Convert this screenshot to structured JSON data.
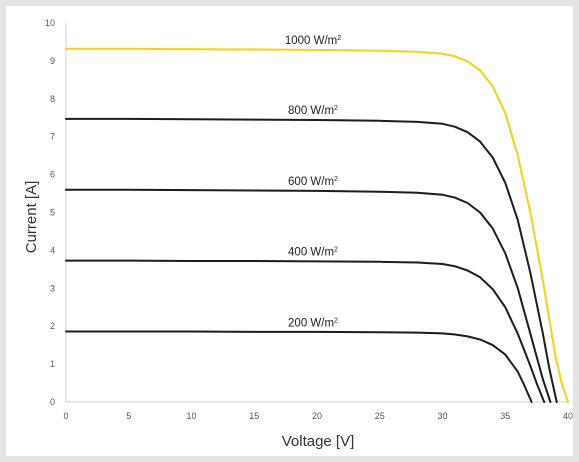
{
  "chart_data": {
    "type": "line",
    "xlabel": "Voltage [V]",
    "ylabel": "Current [A]",
    "xlim": [
      0,
      40
    ],
    "ylim": [
      0,
      10
    ],
    "x_ticks": [
      "0",
      "5",
      "10",
      "15",
      "20",
      "25",
      "30",
      "35",
      "40"
    ],
    "y_ticks": [
      "0",
      "1",
      "2",
      "3",
      "4",
      "5",
      "6",
      "7",
      "8",
      "9",
      "10"
    ],
    "grid": false,
    "legend": "none",
    "series": [
      {
        "name": "1000 W/m²",
        "label_text": "1000 W/m",
        "label_sup": "2",
        "color": "#f2d21b",
        "x": [
          0,
          5,
          10,
          15,
          20,
          25,
          28,
          30,
          31,
          32,
          33,
          34,
          35,
          36,
          37,
          38,
          38.5,
          39,
          39.5,
          40
        ],
        "y": [
          9.32,
          9.32,
          9.31,
          9.3,
          9.29,
          9.27,
          9.24,
          9.19,
          9.12,
          8.99,
          8.75,
          8.33,
          7.62,
          6.5,
          5.0,
          3.2,
          2.2,
          1.2,
          0.5,
          0
        ]
      },
      {
        "name": "800 W/m²",
        "label_text": "800 W/m",
        "label_sup": "2",
        "color": "#1c1c1c",
        "x": [
          0,
          5,
          10,
          15,
          20,
          25,
          28,
          30,
          31,
          32,
          33,
          34,
          35,
          36,
          37,
          38,
          38.5,
          39.1
        ],
        "y": [
          7.47,
          7.47,
          7.46,
          7.45,
          7.44,
          7.42,
          7.39,
          7.34,
          7.26,
          7.12,
          6.87,
          6.45,
          5.78,
          4.8,
          3.4,
          1.8,
          0.9,
          0
        ]
      },
      {
        "name": "600 W/m²",
        "label_text": "600 W/m",
        "label_sup": "2",
        "color": "#1c1c1c",
        "x": [
          0,
          5,
          10,
          15,
          20,
          25,
          28,
          30,
          31,
          32,
          33,
          34,
          35,
          36,
          37,
          37.5,
          38,
          38.6
        ],
        "y": [
          5.6,
          5.6,
          5.59,
          5.58,
          5.57,
          5.55,
          5.52,
          5.47,
          5.39,
          5.25,
          5.0,
          4.58,
          3.92,
          3.0,
          1.8,
          1.2,
          0.6,
          0
        ]
      },
      {
        "name": "400 W/m²",
        "label_text": "400 W/m",
        "label_sup": "2",
        "color": "#1c1c1c",
        "x": [
          0,
          5,
          10,
          15,
          20,
          25,
          28,
          30,
          31,
          32,
          33,
          34,
          35,
          36,
          37,
          37.5,
          38.1
        ],
        "y": [
          3.73,
          3.73,
          3.72,
          3.72,
          3.71,
          3.7,
          3.68,
          3.64,
          3.58,
          3.47,
          3.29,
          2.98,
          2.5,
          1.8,
          0.95,
          0.5,
          0
        ]
      },
      {
        "name": "200 W/m²",
        "label_text": "200 W/m",
        "label_sup": "2",
        "color": "#1c1c1c",
        "x": [
          0,
          5,
          10,
          15,
          20,
          25,
          28,
          30,
          31,
          32,
          33,
          34,
          35,
          36,
          36.5,
          37.1
        ],
        "y": [
          1.86,
          1.86,
          1.86,
          1.85,
          1.85,
          1.84,
          1.83,
          1.81,
          1.78,
          1.73,
          1.65,
          1.5,
          1.25,
          0.8,
          0.45,
          0
        ]
      }
    ]
  }
}
